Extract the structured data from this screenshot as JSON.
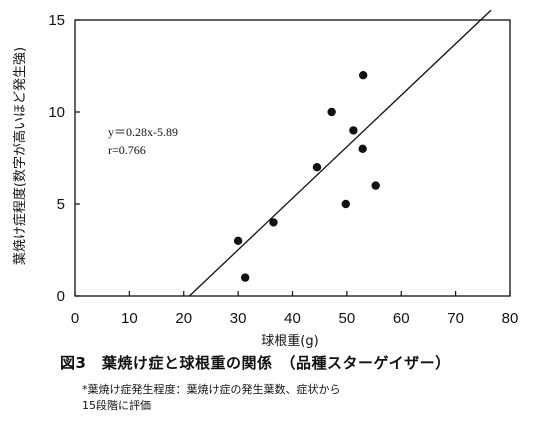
{
  "chart_data": {
    "type": "scatter",
    "xlabel": "球根重(g)",
    "ylabel": "葉焼け症程度(数字が高いほど発生強)",
    "xlim": [
      0,
      80
    ],
    "ylim": [
      0,
      15
    ],
    "x_ticks": [
      "0",
      "10",
      "20",
      "30",
      "40",
      "50",
      "60",
      "70",
      "80"
    ],
    "y_ticks": [
      "0",
      "5",
      "10",
      "15"
    ],
    "grid": false,
    "points": [
      {
        "x": 30,
        "y": 3
      },
      {
        "x": 31.3,
        "y": 1
      },
      {
        "x": 36.5,
        "y": 4
      },
      {
        "x": 44.5,
        "y": 7
      },
      {
        "x": 47.2,
        "y": 10
      },
      {
        "x": 49.8,
        "y": 5
      },
      {
        "x": 51.2,
        "y": 9
      },
      {
        "x": 52.9,
        "y": 8
      },
      {
        "x": 53,
        "y": 12
      },
      {
        "x": 55.3,
        "y": 6
      }
    ],
    "regression": {
      "slope": 0.28,
      "intercept": -5.89,
      "x_start": 21.04,
      "x_end": 76.5
    },
    "annotations": {
      "equation": "y＝0.28x-5.89",
      "r": "r=0.766"
    }
  },
  "caption": "図3　葉焼け症と球根重の関係　（品種スターゲイザー）",
  "footnote_line1": "*葉焼け症発生程度：葉焼け症の発生葉数、症状から",
  "footnote_line2": "15段階に評価"
}
